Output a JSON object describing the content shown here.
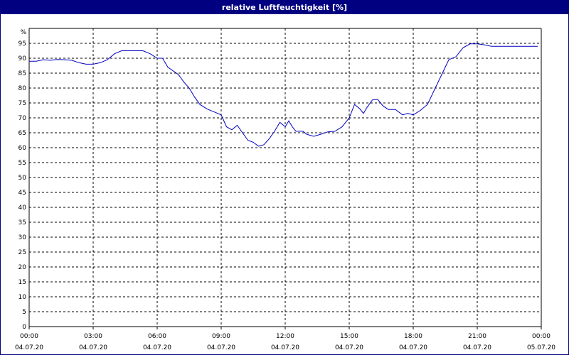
{
  "title": "relative Luftfeuchtigkeit [%]",
  "colors": {
    "title_bar": "#000080",
    "series": "#0000c0",
    "grid": "#000000",
    "background": "#ffffff"
  },
  "chart_data": {
    "type": "line",
    "title": "relative Luftfeuchtigkeit [%]",
    "ylabel": "%",
    "xlabel": "",
    "ylim": [
      0,
      100
    ],
    "xlim": [
      "2020-07-04 00:00",
      "2020-07-05 00:00"
    ],
    "y_ticks": [
      0,
      5,
      10,
      15,
      20,
      25,
      30,
      35,
      40,
      45,
      50,
      55,
      60,
      65,
      70,
      75,
      80,
      85,
      90,
      95
    ],
    "y_unit_label": "%",
    "x_ticks": [
      {
        "time": "00:00",
        "date": "04.07.20"
      },
      {
        "time": "03:00",
        "date": "04.07.20"
      },
      {
        "time": "06:00",
        "date": "04.07.20"
      },
      {
        "time": "09:00",
        "date": "04.07.20"
      },
      {
        "time": "12:00",
        "date": "04.07.20"
      },
      {
        "time": "15:00",
        "date": "04.07.20"
      },
      {
        "time": "18:00",
        "date": "04.07.20"
      },
      {
        "time": "21:00",
        "date": "04.07.20"
      },
      {
        "time": "00:00",
        "date": "05.07.20"
      }
    ],
    "grid": true,
    "series": [
      {
        "points": [
          [
            "2020-07-04 00:00",
            89
          ],
          [
            "2020-07-04 00:20",
            89
          ],
          [
            "2020-07-04 00:40",
            89.5
          ],
          [
            "2020-07-04 01:00",
            89.3
          ],
          [
            "2020-07-04 01:20",
            89.6
          ],
          [
            "2020-07-04 01:40",
            89.5
          ],
          [
            "2020-07-04 02:00",
            89.3
          ],
          [
            "2020-07-04 02:20",
            88.5
          ],
          [
            "2020-07-04 02:40",
            88
          ],
          [
            "2020-07-04 03:00",
            88
          ],
          [
            "2020-07-04 03:20",
            88.5
          ],
          [
            "2020-07-04 03:40",
            89.5
          ],
          [
            "2020-07-04 04:00",
            91.5
          ],
          [
            "2020-07-04 04:20",
            92.5
          ],
          [
            "2020-07-04 04:40",
            92.5
          ],
          [
            "2020-07-04 05:00",
            92.5
          ],
          [
            "2020-07-04 05:20",
            92.5
          ],
          [
            "2020-07-04 05:40",
            91.5
          ],
          [
            "2020-07-04 06:00",
            90
          ],
          [
            "2020-07-04 06:15",
            90
          ],
          [
            "2020-07-04 06:30",
            87
          ],
          [
            "2020-07-04 07:00",
            84.5
          ],
          [
            "2020-07-04 07:15",
            82
          ],
          [
            "2020-07-04 07:30",
            80
          ],
          [
            "2020-07-04 07:45",
            77
          ],
          [
            "2020-07-04 08:00",
            74.5
          ],
          [
            "2020-07-04 08:20",
            73
          ],
          [
            "2020-07-04 08:40",
            72
          ],
          [
            "2020-07-04 09:00",
            71
          ],
          [
            "2020-07-04 09:15",
            67
          ],
          [
            "2020-07-04 09:30",
            66
          ],
          [
            "2020-07-04 09:45",
            67.5
          ],
          [
            "2020-07-04 10:00",
            65
          ],
          [
            "2020-07-04 10:15",
            62.5
          ],
          [
            "2020-07-04 10:30",
            61.8
          ],
          [
            "2020-07-04 10:45",
            60.5
          ],
          [
            "2020-07-04 11:00",
            61
          ],
          [
            "2020-07-04 11:15",
            63
          ],
          [
            "2020-07-04 11:30",
            65.5
          ],
          [
            "2020-07-04 11:45",
            68.5
          ],
          [
            "2020-07-04 12:00",
            67
          ],
          [
            "2020-07-04 12:10",
            69
          ],
          [
            "2020-07-04 12:20",
            67
          ],
          [
            "2020-07-04 12:30",
            65.5
          ],
          [
            "2020-07-04 12:50",
            65.5
          ],
          [
            "2020-07-04 13:00",
            64.5
          ],
          [
            "2020-07-04 13:20",
            63.8
          ],
          [
            "2020-07-04 13:40",
            64.5
          ],
          [
            "2020-07-04 14:00",
            65.3
          ],
          [
            "2020-07-04 14:20",
            65.5
          ],
          [
            "2020-07-04 14:40",
            67
          ],
          [
            "2020-07-04 15:00",
            70
          ],
          [
            "2020-07-04 15:15",
            74.5
          ],
          [
            "2020-07-04 15:30",
            73
          ],
          [
            "2020-07-04 15:40",
            71.5
          ],
          [
            "2020-07-04 15:50",
            73.5
          ],
          [
            "2020-07-04 16:05",
            76
          ],
          [
            "2020-07-04 16:20",
            76.2
          ],
          [
            "2020-07-04 16:35",
            74
          ],
          [
            "2020-07-04 16:50",
            72.8
          ],
          [
            "2020-07-04 17:10",
            72.8
          ],
          [
            "2020-07-04 17:30",
            71
          ],
          [
            "2020-07-04 17:45",
            71.5
          ],
          [
            "2020-07-04 18:00",
            71
          ],
          [
            "2020-07-04 18:20",
            72.5
          ],
          [
            "2020-07-04 18:40",
            74.5
          ],
          [
            "2020-07-04 19:00",
            79.5
          ],
          [
            "2020-07-04 19:20",
            84.5
          ],
          [
            "2020-07-04 19:40",
            89.5
          ],
          [
            "2020-07-04 20:00",
            90.5
          ],
          [
            "2020-07-04 20:20",
            93.5
          ],
          [
            "2020-07-04 20:40",
            94.8
          ],
          [
            "2020-07-04 21:00",
            94.8
          ],
          [
            "2020-07-04 21:20",
            94.5
          ],
          [
            "2020-07-04 21:40",
            94
          ],
          [
            "2020-07-04 22:00",
            94
          ],
          [
            "2020-07-04 23:00",
            94
          ],
          [
            "2020-07-04 23:50",
            94
          ]
        ]
      }
    ]
  }
}
